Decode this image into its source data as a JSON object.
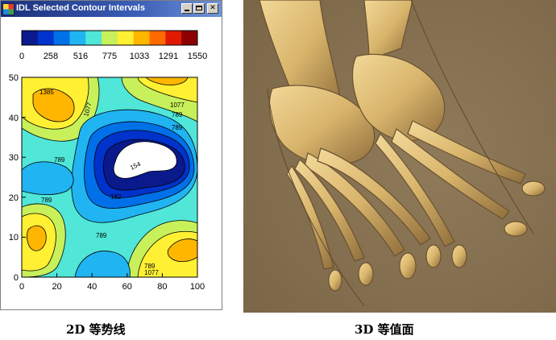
{
  "window": {
    "title": "IDL Selected Contour Intervals",
    "controls": [
      "minimize",
      "maximize",
      "close"
    ]
  },
  "colorbar": {
    "colors": [
      "#0a1a8c",
      "#0033cc",
      "#0070e8",
      "#20b4f2",
      "#50e6d8",
      "#c8f05a",
      "#fff033",
      "#ffb600",
      "#ff6a00",
      "#e01a00",
      "#8c0000"
    ],
    "tick_labels": [
      "0",
      "258",
      "516",
      "775",
      "1033",
      "1291",
      "1550"
    ]
  },
  "contour_plot": {
    "x_ticks": [
      "0",
      "20",
      "40",
      "60",
      "80",
      "100"
    ],
    "y_ticks": [
      "0",
      "10",
      "20",
      "30",
      "40",
      "50"
    ],
    "contour_labels": [
      "1385",
      "1077",
      "789",
      "789",
      "1077",
      "789",
      "789",
      "1077",
      "789",
      "182",
      "154",
      "789"
    ]
  },
  "render": {
    "image": "3D volume-rendered foot bones on brown background",
    "background": "#8a7555",
    "bone_color": "#d9b56c"
  },
  "captions": {
    "left": "2D 等势线",
    "right": "3D 等值面"
  }
}
